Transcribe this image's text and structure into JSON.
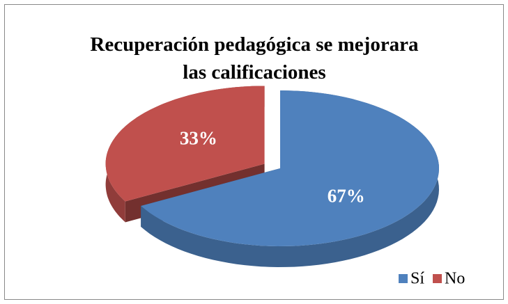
{
  "chart_data": {
    "type": "pie",
    "title": "Recuperación pedagógica se mejorara las calificaciones",
    "categories": [
      "Sí",
      "No"
    ],
    "values": [
      67,
      33
    ],
    "value_labels": [
      "67%",
      "33%"
    ],
    "colors": [
      "#4f81bd",
      "#c0504d"
    ],
    "legend": "bottom-right",
    "exploded": [
      false,
      true
    ]
  }
}
